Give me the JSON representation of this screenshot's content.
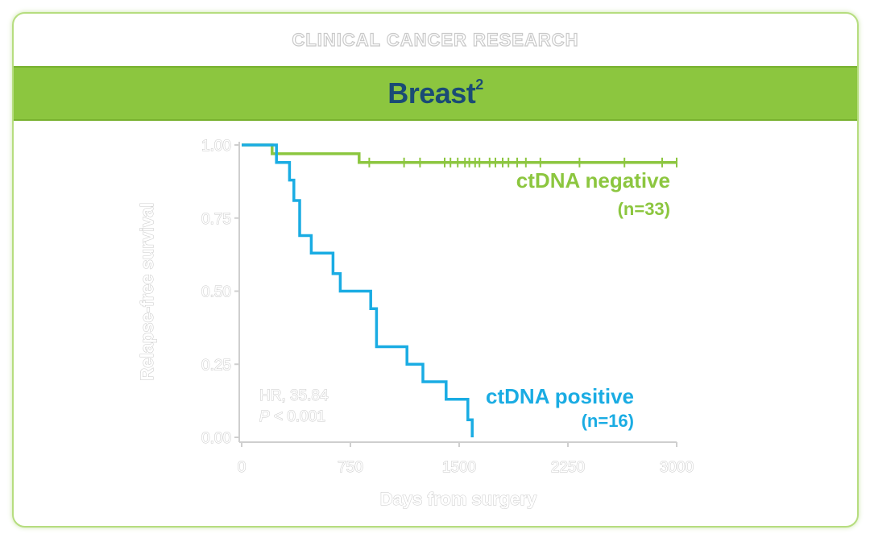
{
  "header": {
    "journal": "CLINICAL CANCER RESEARCH",
    "title": "Breast",
    "title_superscript": "2"
  },
  "chart_data": {
    "type": "line",
    "xlabel": "Days from surgery",
    "ylabel": "Relapse-free survival",
    "xlim": [
      0,
      3000
    ],
    "ylim": [
      0,
      1
    ],
    "x_ticks": [
      "0",
      "750",
      "1500",
      "2250",
      "3000"
    ],
    "x_tick_values": [
      0,
      750,
      1500,
      2250,
      3000
    ],
    "y_ticks": [
      "0.00",
      "0.25",
      "0.50",
      "0.75",
      "1.00"
    ],
    "y_tick_values": [
      0,
      0.25,
      0.5,
      0.75,
      1.0
    ],
    "grid": false,
    "series": [
      {
        "name": "ctDNA negative",
        "n_label": "(n=33)",
        "color": "#8cc63f",
        "x": [
          0,
          210,
          210,
          810,
          810,
          3000
        ],
        "y": [
          1.0,
          1.0,
          0.97,
          0.97,
          0.94,
          0.94
        ],
        "censor_x": [
          880,
          1120,
          1230,
          1400,
          1440,
          1490,
          1540,
          1570,
          1610,
          1640,
          1710,
          1750,
          1800,
          1840,
          1900,
          1960,
          2060,
          2330,
          2640,
          2900,
          3000
        ]
      },
      {
        "name": "ctDNA positive",
        "n_label": "(n=16)",
        "color": "#1aace3",
        "x": [
          0,
          240,
          240,
          330,
          330,
          360,
          360,
          400,
          400,
          480,
          480,
          630,
          630,
          680,
          680,
          890,
          890,
          930,
          930,
          1140,
          1140,
          1250,
          1250,
          1410,
          1410,
          1560,
          1560,
          1590,
          1590
        ],
        "y": [
          1.0,
          1.0,
          0.94,
          0.94,
          0.88,
          0.88,
          0.81,
          0.81,
          0.69,
          0.69,
          0.63,
          0.63,
          0.56,
          0.56,
          0.5,
          0.5,
          0.44,
          0.44,
          0.31,
          0.31,
          0.25,
          0.25,
          0.19,
          0.19,
          0.13,
          0.13,
          0.06,
          0.06,
          0.0
        ]
      }
    ],
    "annotations": {
      "hr": "HR, 35.84",
      "p_italic": "P",
      "p_rest": " < 0.001"
    }
  }
}
